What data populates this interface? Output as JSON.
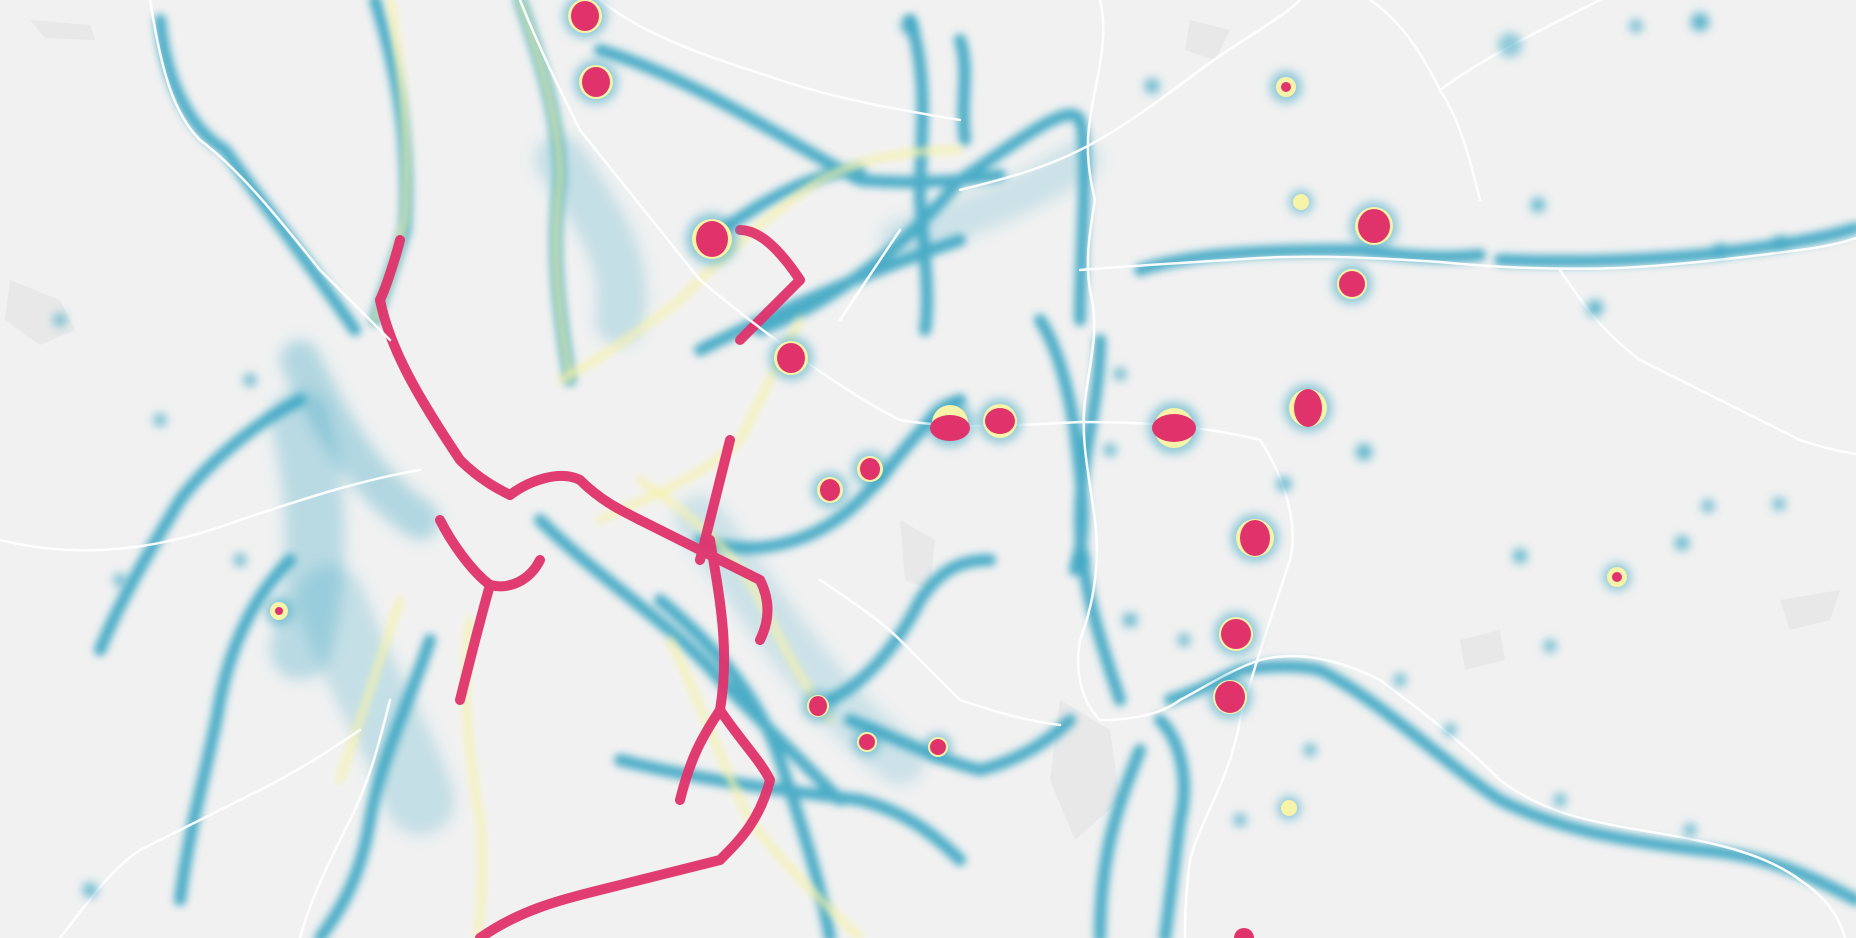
{
  "map": {
    "type": "heatmap",
    "labels_visible": false,
    "colors": {
      "background": "#f1f1f1",
      "heat_low": "#3aa6c3",
      "heat_mid": "#7fdcc4",
      "heat_warm": "#f7f3a8",
      "heat_high": "#f4a03a",
      "heat_peak": "#e0336c",
      "road": "#ffffff"
    },
    "layers": {
      "base": "light-grey-basemap",
      "roads": "white-highway-lines",
      "density": "traffic-density-heatmap"
    }
  }
}
